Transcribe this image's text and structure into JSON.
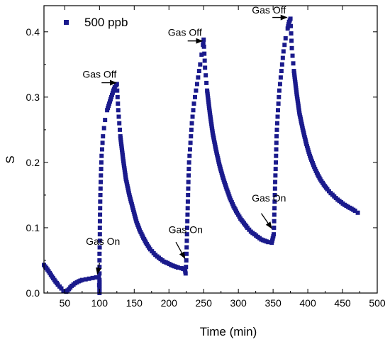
{
  "chart_data": {
    "type": "scatter",
    "xlabel": "Time (min)",
    "ylabel": "S",
    "xlim": [
      20,
      500
    ],
    "ylim": [
      0,
      0.44
    ],
    "x_ticks": [
      50,
      100,
      150,
      200,
      250,
      300,
      350,
      400,
      450,
      500
    ],
    "y_ticks": [
      0.0,
      0.1,
      0.2,
      0.3,
      0.4
    ],
    "y_tick_labels": [
      "0.0",
      "0.1",
      "0.2",
      "0.3",
      "0.4"
    ],
    "grid": false,
    "legend_position": "top-left",
    "series": [
      {
        "name": "500 ppb",
        "color": "#1a1a8c",
        "marker": "square",
        "points": [
          [
            20,
            0.043
          ],
          [
            25,
            0.036
          ],
          [
            30,
            0.028
          ],
          [
            35,
            0.02
          ],
          [
            40,
            0.013
          ],
          [
            45,
            0.007
          ],
          [
            48,
            0.003
          ],
          [
            52,
            0.002
          ],
          [
            56,
            0.006
          ],
          [
            60,
            0.011
          ],
          [
            65,
            0.015
          ],
          [
            70,
            0.018
          ],
          [
            75,
            0.02
          ],
          [
            80,
            0.021
          ],
          [
            85,
            0.022
          ],
          [
            90,
            0.023
          ],
          [
            95,
            0.024
          ],
          [
            99,
            0.024
          ],
          [
            100,
            0.0
          ],
          [
            100,
            0.01
          ],
          [
            100,
            0.02
          ],
          [
            100,
            0.04
          ],
          [
            100,
            0.06
          ],
          [
            100.5,
            0.08
          ],
          [
            100.5,
            0.1
          ],
          [
            101,
            0.14
          ],
          [
            102,
            0.18
          ],
          [
            103,
            0.21
          ],
          [
            105,
            0.24
          ],
          [
            108,
            0.265
          ],
          [
            111,
            0.28
          ],
          [
            114,
            0.29
          ],
          [
            117,
            0.3
          ],
          [
            120,
            0.31
          ],
          [
            122,
            0.315
          ],
          [
            124,
            0.318
          ],
          [
            125,
            0.32
          ],
          [
            127,
            0.28
          ],
          [
            130,
            0.24
          ],
          [
            134,
            0.205
          ],
          [
            138,
            0.175
          ],
          [
            143,
            0.15
          ],
          [
            148,
            0.13
          ],
          [
            153,
            0.11
          ],
          [
            158,
            0.096
          ],
          [
            163,
            0.085
          ],
          [
            168,
            0.075
          ],
          [
            173,
            0.067
          ],
          [
            178,
            0.061
          ],
          [
            183,
            0.056
          ],
          [
            188,
            0.052
          ],
          [
            193,
            0.048
          ],
          [
            198,
            0.046
          ],
          [
            203,
            0.043
          ],
          [
            208,
            0.041
          ],
          [
            213,
            0.039
          ],
          [
            218,
            0.038
          ],
          [
            223,
            0.036
          ],
          [
            224,
            0.03
          ],
          [
            225,
            0.05
          ],
          [
            226,
            0.09
          ],
          [
            227,
            0.13
          ],
          [
            228,
            0.17
          ],
          [
            229,
            0.2
          ],
          [
            231,
            0.23
          ],
          [
            233,
            0.26
          ],
          [
            236,
            0.29
          ],
          [
            239,
            0.31
          ],
          [
            242,
            0.33
          ],
          [
            245,
            0.35
          ],
          [
            247,
            0.365
          ],
          [
            249,
            0.38
          ],
          [
            250,
            0.388
          ],
          [
            252,
            0.345
          ],
          [
            255,
            0.31
          ],
          [
            259,
            0.275
          ],
          [
            263,
            0.245
          ],
          [
            268,
            0.218
          ],
          [
            273,
            0.195
          ],
          [
            278,
            0.176
          ],
          [
            283,
            0.16
          ],
          [
            288,
            0.145
          ],
          [
            293,
            0.133
          ],
          [
            298,
            0.123
          ],
          [
            303,
            0.114
          ],
          [
            308,
            0.107
          ],
          [
            313,
            0.1
          ],
          [
            318,
            0.094
          ],
          [
            323,
            0.09
          ],
          [
            328,
            0.086
          ],
          [
            333,
            0.082
          ],
          [
            338,
            0.08
          ],
          [
            343,
            0.078
          ],
          [
            348,
            0.077
          ],
          [
            351,
            0.09
          ],
          [
            352,
            0.13
          ],
          [
            353,
            0.17
          ],
          [
            354,
            0.2
          ],
          [
            355,
            0.24
          ],
          [
            357,
            0.28
          ],
          [
            359,
            0.31
          ],
          [
            362,
            0.34
          ],
          [
            365,
            0.37
          ],
          [
            368,
            0.39
          ],
          [
            371,
            0.405
          ],
          [
            373,
            0.415
          ],
          [
            375,
            0.42
          ],
          [
            377,
            0.375
          ],
          [
            380,
            0.34
          ],
          [
            384,
            0.305
          ],
          [
            388,
            0.275
          ],
          [
            393,
            0.25
          ],
          [
            398,
            0.228
          ],
          [
            403,
            0.21
          ],
          [
            408,
            0.196
          ],
          [
            413,
            0.184
          ],
          [
            418,
            0.174
          ],
          [
            423,
            0.166
          ],
          [
            428,
            0.159
          ],
          [
            433,
            0.153
          ],
          [
            438,
            0.148
          ],
          [
            443,
            0.143
          ],
          [
            448,
            0.139
          ],
          [
            453,
            0.135
          ],
          [
            458,
            0.132
          ],
          [
            463,
            0.129
          ],
          [
            468,
            0.126
          ],
          [
            472,
            0.123
          ]
        ]
      }
    ],
    "annotations": [
      {
        "text": "Gas On",
        "x": 105,
        "y": 0.074,
        "arrow_from": [
          100,
          0.046
        ],
        "arrow_to": [
          97,
          0.029
        ]
      },
      {
        "text": "Gas Off",
        "x": 100,
        "y": 0.33,
        "arrow_from": [
          103,
          0.322
        ],
        "arrow_to": [
          124,
          0.322
        ]
      },
      {
        "text": "Gas On",
        "x": 224,
        "y": 0.092,
        "arrow_from": [
          210,
          0.078
        ],
        "arrow_to": [
          223,
          0.053
        ]
      },
      {
        "text": "Gas Off",
        "x": 223,
        "y": 0.394,
        "arrow_from": [
          227,
          0.386
        ],
        "arrow_to": [
          248,
          0.386
        ]
      },
      {
        "text": "Gas On",
        "x": 344,
        "y": 0.14,
        "arrow_from": [
          333,
          0.122
        ],
        "arrow_to": [
          348,
          0.099
        ]
      },
      {
        "text": "Gas Off",
        "x": 344,
        "y": 0.428,
        "arrow_from": [
          349,
          0.422
        ],
        "arrow_to": [
          370,
          0.422
        ]
      }
    ]
  }
}
